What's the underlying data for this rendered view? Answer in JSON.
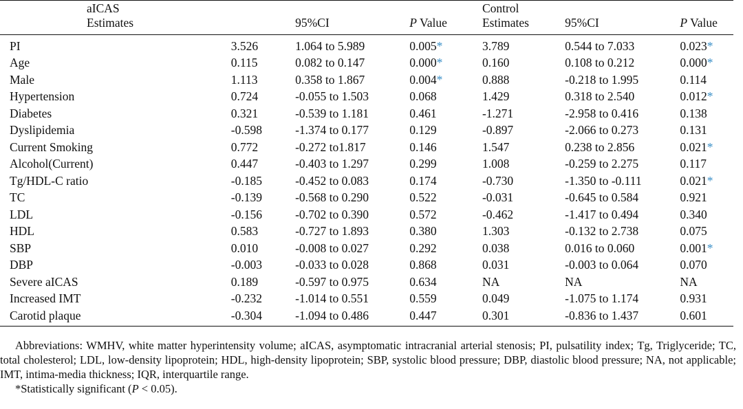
{
  "table": {
    "header_row1": {
      "label": "aICAS",
      "control": "Control"
    },
    "header_row2": {
      "estimates1": "Estimates",
      "ci1": "95%CI",
      "p_italic1": "P",
      "p_rest1": " Value",
      "estimates2": "Estimates",
      "ci2": "95%CI",
      "p_italic2": "P",
      "p_rest2": " Value"
    },
    "star_symbol": "*",
    "rows": [
      {
        "label": "PI",
        "est1": "3.526",
        "ci1": "1.064 to 5.989",
        "p1": "0.005",
        "p1_sig": true,
        "est2": "3.789",
        "ci2": "0.544 to 7.033",
        "p2": "0.023",
        "p2_sig": true
      },
      {
        "label": "Age",
        "est1": "0.115",
        "ci1": "0.082 to 0.147",
        "p1": "0.000",
        "p1_sig": true,
        "est2": "0.160",
        "ci2": "0.108 to 0.212",
        "p2": "0.000",
        "p2_sig": true
      },
      {
        "label": "Male",
        "est1": "1.113",
        "ci1": "0.358 to 1.867",
        "p1": "0.004",
        "p1_sig": true,
        "est2": "0.888",
        "ci2": "-0.218 to 1.995",
        "p2": "0.114",
        "p2_sig": false
      },
      {
        "label": "Hypertension",
        "est1": "0.724",
        "ci1": "-0.055 to 1.503",
        "p1": "0.068",
        "p1_sig": false,
        "est2": "1.429",
        "ci2": "0.318 to 2.540",
        "p2": "0.012",
        "p2_sig": true
      },
      {
        "label": "Diabetes",
        "est1": "0.321",
        "ci1": "-0.539 to 1.181",
        "p1": "0.461",
        "p1_sig": false,
        "est2": "-1.271",
        "ci2": "-2.958 to 0.416",
        "p2": "0.138",
        "p2_sig": false
      },
      {
        "label": "Dyslipidemia",
        "est1": "-0.598",
        "ci1": "-1.374 to 0.177",
        "p1": "0.129",
        "p1_sig": false,
        "est2": "-0.897",
        "ci2": "-2.066 to 0.273",
        "p2": "0.131",
        "p2_sig": false
      },
      {
        "label": "Current Smoking",
        "est1": "0.772",
        "ci1": "-0.272 to1.817",
        "p1": "0.146",
        "p1_sig": false,
        "est2": "1.547",
        "ci2": "0.238 to 2.856",
        "p2": "0.021",
        "p2_sig": true
      },
      {
        "label": "Alcohol(Current)",
        "est1": "0.447",
        "ci1": "-0.403 to 1.297",
        "p1": "0.299",
        "p1_sig": false,
        "est2": "1.008",
        "ci2": "-0.259 to 2.275",
        "p2": "0.117",
        "p2_sig": false
      },
      {
        "label": "Tg/HDL-C ratio",
        "est1": "-0.185",
        "ci1": "-0.452 to 0.083",
        "p1": "0.174",
        "p1_sig": false,
        "est2": "-0.730",
        "ci2": "-1.350 to -0.111",
        "p2": "0.021",
        "p2_sig": true
      },
      {
        "label": "TC",
        "est1": "-0.139",
        "ci1": "-0.568 to 0.290",
        "p1": "0.522",
        "p1_sig": false,
        "est2": "-0.031",
        "ci2": "-0.645 to 0.584",
        "p2": "0.921",
        "p2_sig": false
      },
      {
        "label": "LDL",
        "est1": "-0.156",
        "ci1": "-0.702 to 0.390",
        "p1": "0.572",
        "p1_sig": false,
        "est2": "-0.462",
        "ci2": "-1.417 to 0.494",
        "p2": "0.340",
        "p2_sig": false
      },
      {
        "label": "HDL",
        "est1": "0.583",
        "ci1": "-0.727 to 1.893",
        "p1": "0.380",
        "p1_sig": false,
        "est2": "1.303",
        "ci2": "-0.132 to 2.738",
        "p2": "0.075",
        "p2_sig": false
      },
      {
        "label": "SBP",
        "est1": "0.010",
        "ci1": "-0.008 to 0.027",
        "p1": "0.292",
        "p1_sig": false,
        "est2": "0.038",
        "ci2": "0.016 to 0.060",
        "p2": "0.001",
        "p2_sig": true
      },
      {
        "label": "DBP",
        "est1": "-0.003",
        "ci1": "-0.033 to 0.028",
        "p1": "0.868",
        "p1_sig": false,
        "est2": "0.031",
        "ci2": "-0.003 to 0.064",
        "p2": "0.070",
        "p2_sig": false
      },
      {
        "label": "Severe aICAS",
        "est1": "0.189",
        "ci1": "-0.597 to 0.975",
        "p1": "0.634",
        "p1_sig": false,
        "est2": "NA",
        "ci2": "NA",
        "p2": "NA",
        "p2_sig": false
      },
      {
        "label": "Increased IMT",
        "est1": "-0.232",
        "ci1": "-1.014 to 0.551",
        "p1": "0.559",
        "p1_sig": false,
        "est2": "0.049",
        "ci2": "-1.075 to 1.174",
        "p2": "0.931",
        "p2_sig": false
      },
      {
        "label": "Carotid plaque",
        "est1": "-0.304",
        "ci1": "-1.094 to 0.486",
        "p1": "0.447",
        "p1_sig": false,
        "est2": "0.301",
        "ci2": "-0.836 to 1.437",
        "p2": "0.601",
        "p2_sig": false
      }
    ]
  },
  "footnotes": {
    "abbreviations": "Abbreviations: WMHV, white matter hyperintensity volume; aICAS, asymptomatic intracranial arterial stenosis; PI, pulsatility index; Tg, Triglyceride; TC, total cholesterol; LDL, low-density lipoprotein; HDL, high-density lipoprotein; SBP, systolic blood pressure; DBP, diastolic blood pressure; NA, not applicable; IMT, intima-media thickness; IQR, interquartile range.",
    "significance_prefix": "*Statistically significant (",
    "significance_italic": "P",
    "significance_suffix": " < 0.05)."
  },
  "colors": {
    "significance_star": "#3a8fc7",
    "text": "#111111",
    "background": "#ffffff"
  }
}
